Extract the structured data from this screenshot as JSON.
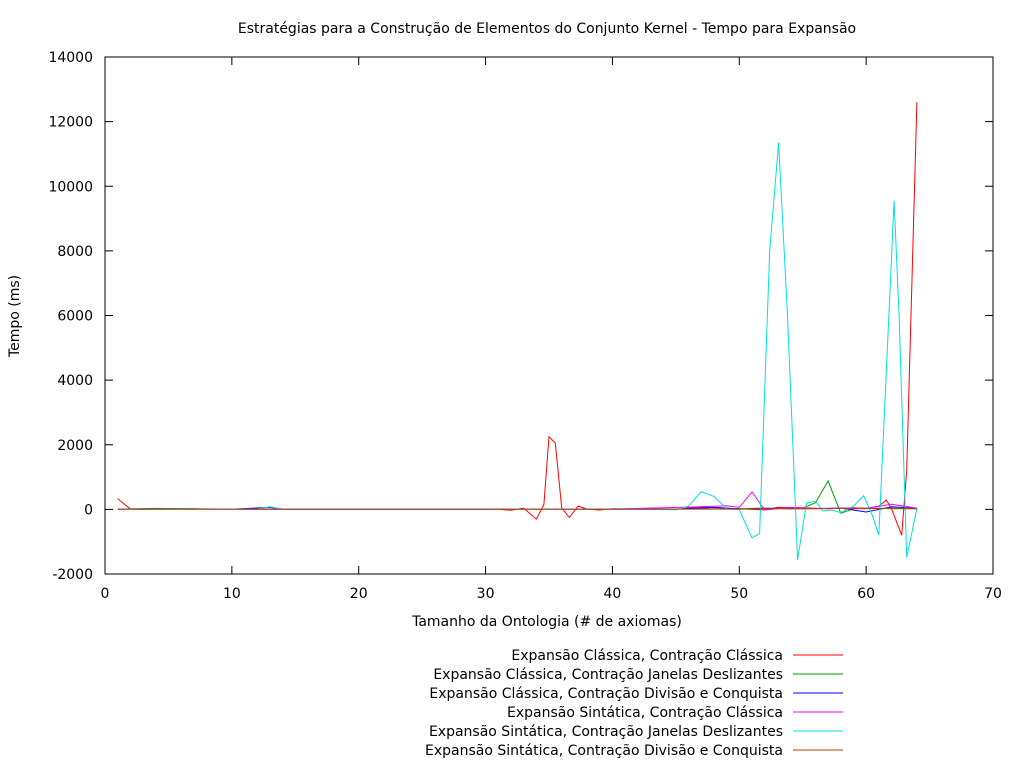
{
  "chart_data": {
    "type": "line",
    "title": "Estratégias para a Construção de Elementos do Conjunto Kernel - Tempo para Expansão",
    "xlabel": "Tamanho da Ontologia (# de axiomas)",
    "ylabel": "Tempo (ms)",
    "xlim": [
      0,
      70
    ],
    "ylim": [
      -2000,
      14000
    ],
    "xticks": [
      0,
      10,
      20,
      30,
      40,
      50,
      60,
      70
    ],
    "yticks": [
      -2000,
      0,
      2000,
      4000,
      6000,
      8000,
      10000,
      12000,
      14000
    ],
    "grid": false,
    "legend_position": "bottom-right",
    "series": [
      {
        "name": "Expansão Clássica, Contração Clássica",
        "color": "#ff0000",
        "points": [
          [
            1,
            330
          ],
          [
            2,
            10
          ],
          [
            3,
            5
          ],
          [
            4,
            10
          ],
          [
            7,
            20
          ],
          [
            8,
            10
          ],
          [
            12,
            5
          ],
          [
            14,
            5
          ],
          [
            20,
            5
          ],
          [
            30,
            5
          ],
          [
            31,
            5
          ],
          [
            32,
            -30
          ],
          [
            33,
            40
          ],
          [
            34,
            -300
          ],
          [
            34.6,
            150
          ],
          [
            35,
            2250
          ],
          [
            35.5,
            2050
          ],
          [
            36,
            50
          ],
          [
            36.6,
            -250
          ],
          [
            37.3,
            100
          ],
          [
            38,
            10
          ],
          [
            39,
            -20
          ],
          [
            40,
            20
          ],
          [
            45,
            10
          ],
          [
            47,
            80
          ],
          [
            50,
            20
          ],
          [
            52,
            -20
          ],
          [
            53,
            60
          ],
          [
            55,
            50
          ],
          [
            57,
            20
          ],
          [
            59,
            50
          ],
          [
            60,
            30
          ],
          [
            61,
            100
          ],
          [
            61.6,
            290
          ],
          [
            62,
            20
          ],
          [
            62.8,
            -800
          ],
          [
            63.2,
            1200
          ],
          [
            64,
            12600
          ]
        ]
      },
      {
        "name": "Expansão Clássica, Contração Janelas Deslizantes",
        "color": "#00a000",
        "points": [
          [
            1,
            10
          ],
          [
            4,
            30
          ],
          [
            10,
            10
          ],
          [
            30,
            10
          ],
          [
            45,
            10
          ],
          [
            48,
            50
          ],
          [
            50,
            20
          ],
          [
            52,
            40
          ],
          [
            54,
            20
          ],
          [
            55,
            40
          ],
          [
            56,
            200
          ],
          [
            57,
            880
          ],
          [
            58,
            -120
          ],
          [
            59,
            20
          ],
          [
            60,
            40
          ],
          [
            62,
            20
          ],
          [
            64,
            20
          ]
        ]
      },
      {
        "name": "Expansão Clássica, Contração Divisão e Conquista",
        "color": "#0000ff",
        "points": [
          [
            1,
            10
          ],
          [
            10,
            10
          ],
          [
            13,
            60
          ],
          [
            14,
            10
          ],
          [
            30,
            10
          ],
          [
            40,
            10
          ],
          [
            45,
            10
          ],
          [
            48,
            60
          ],
          [
            50,
            10
          ],
          [
            52,
            30
          ],
          [
            55,
            20
          ],
          [
            58,
            40
          ],
          [
            60,
            -80
          ],
          [
            62,
            80
          ],
          [
            64,
            30
          ]
        ]
      },
      {
        "name": "Expansão Sintática, Contração Clássica",
        "color": "#ff00ff",
        "points": [
          [
            1,
            10
          ],
          [
            10,
            10
          ],
          [
            30,
            10
          ],
          [
            40,
            10
          ],
          [
            47,
            80
          ],
          [
            49,
            110
          ],
          [
            50,
            60
          ],
          [
            51,
            540
          ],
          [
            52,
            -20
          ],
          [
            54,
            60
          ],
          [
            56,
            20
          ],
          [
            58,
            40
          ],
          [
            60,
            30
          ],
          [
            62,
            160
          ],
          [
            64,
            40
          ]
        ]
      },
      {
        "name": "Expansão Sintática, Contração Janelas Deslizantes",
        "color": "#00e0e0",
        "points": [
          [
            1,
            10
          ],
          [
            12,
            10
          ],
          [
            13,
            80
          ],
          [
            14,
            10
          ],
          [
            30,
            10
          ],
          [
            40,
            10
          ],
          [
            45,
            -10
          ],
          [
            46,
            100
          ],
          [
            47,
            550
          ],
          [
            48,
            400
          ],
          [
            49,
            20
          ],
          [
            50,
            -10
          ],
          [
            51,
            -880
          ],
          [
            51.6,
            -750
          ],
          [
            52.4,
            8000
          ],
          [
            53.1,
            11350
          ],
          [
            53.8,
            6000
          ],
          [
            54.6,
            -1560
          ],
          [
            55.3,
            200
          ],
          [
            56,
            250
          ],
          [
            56.6,
            -50
          ],
          [
            57.3,
            -20
          ],
          [
            58,
            -100
          ],
          [
            59,
            100
          ],
          [
            59.8,
            420
          ],
          [
            60.5,
            -200
          ],
          [
            61,
            -800
          ],
          [
            61.5,
            3500
          ],
          [
            62.2,
            9550
          ],
          [
            62.6,
            6000
          ],
          [
            63.2,
            -1480
          ],
          [
            64,
            20
          ]
        ]
      },
      {
        "name": "Expansão Sintática, Contração Divisão e Conquista",
        "color": "#c04000",
        "points": [
          [
            1,
            10
          ],
          [
            10,
            10
          ],
          [
            30,
            10
          ],
          [
            40,
            10
          ],
          [
            45,
            10
          ],
          [
            50,
            10
          ],
          [
            52,
            20
          ],
          [
            55,
            20
          ],
          [
            58,
            30
          ],
          [
            60,
            20
          ],
          [
            62,
            40
          ],
          [
            64,
            20
          ]
        ]
      }
    ]
  }
}
